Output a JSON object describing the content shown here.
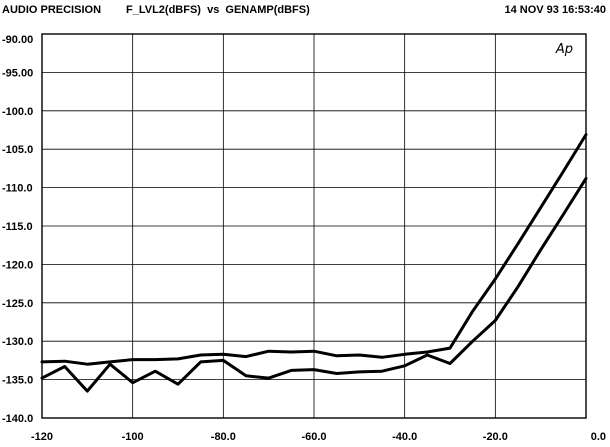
{
  "header": {
    "left": "AUDIO PRECISION",
    "title": "F_LVL2(dBFS)  vs  GENAMP(dBFS)",
    "timestamp": "14 NOV 93 16:53:40"
  },
  "logo": "Ap",
  "chart_data": {
    "type": "line",
    "title": "F_LVL2(dBFS)  vs  GENAMP(dBFS)",
    "xlabel": "GENAMP(dBFS)",
    "ylabel": "F_LVL2(dBFS)",
    "xlim": [
      -120,
      0
    ],
    "ylim": [
      -140,
      -90
    ],
    "grid": true,
    "x_ticks": [
      -120,
      -100,
      -80,
      -60,
      -40,
      -20,
      0
    ],
    "x_tick_labels": [
      "-120",
      "-100",
      "-80.0",
      "-60.0",
      "-40.0",
      "-20.0",
      "0.0"
    ],
    "y_ticks": [
      -90,
      -95,
      -100,
      -105,
      -110,
      -115,
      -120,
      -125,
      -130,
      -135,
      -140
    ],
    "y_tick_labels": [
      "-90.00",
      "-95.00",
      "-100.0",
      "-105.0",
      "-110.0",
      "-115.0",
      "-120.0",
      "-125.0",
      "-130.0",
      "-135.0",
      "-140.0"
    ],
    "series": [
      {
        "x": [
          -120,
          -115,
          -110,
          -105,
          -100,
          -95,
          -90,
          -85,
          -80,
          -75,
          -70,
          -65,
          -60,
          -55,
          -50,
          -45,
          -40,
          -35,
          -30,
          -25,
          -20,
          -15,
          -10,
          -5,
          0
        ],
        "y": [
          -132.7,
          -132.6,
          -133.0,
          -132.7,
          -132.4,
          -132.4,
          -132.3,
          -131.8,
          -131.7,
          -132.0,
          -131.3,
          -131.4,
          -131.3,
          -131.9,
          -131.8,
          -132.1,
          -131.7,
          -131.4,
          -130.9,
          -126.1,
          -121.9,
          -117.3,
          -112.6,
          -107.9,
          -103.1
        ]
      },
      {
        "x": [
          -120,
          -115,
          -110,
          -105,
          -100,
          -95,
          -90,
          -85,
          -80,
          -75,
          -70,
          -65,
          -60,
          -55,
          -50,
          -45,
          -40,
          -35,
          -30,
          -25,
          -20,
          -15,
          -10,
          -5,
          0
        ],
        "y": [
          -134.8,
          -133.3,
          -136.5,
          -133.0,
          -135.4,
          -133.9,
          -135.6,
          -132.7,
          -132.5,
          -134.5,
          -134.8,
          -133.8,
          -133.7,
          -134.2,
          -134.0,
          -133.9,
          -133.2,
          -131.8,
          -132.9,
          -130.0,
          -127.3,
          -122.9,
          -118.1,
          -113.5,
          -108.8
        ]
      }
    ]
  }
}
